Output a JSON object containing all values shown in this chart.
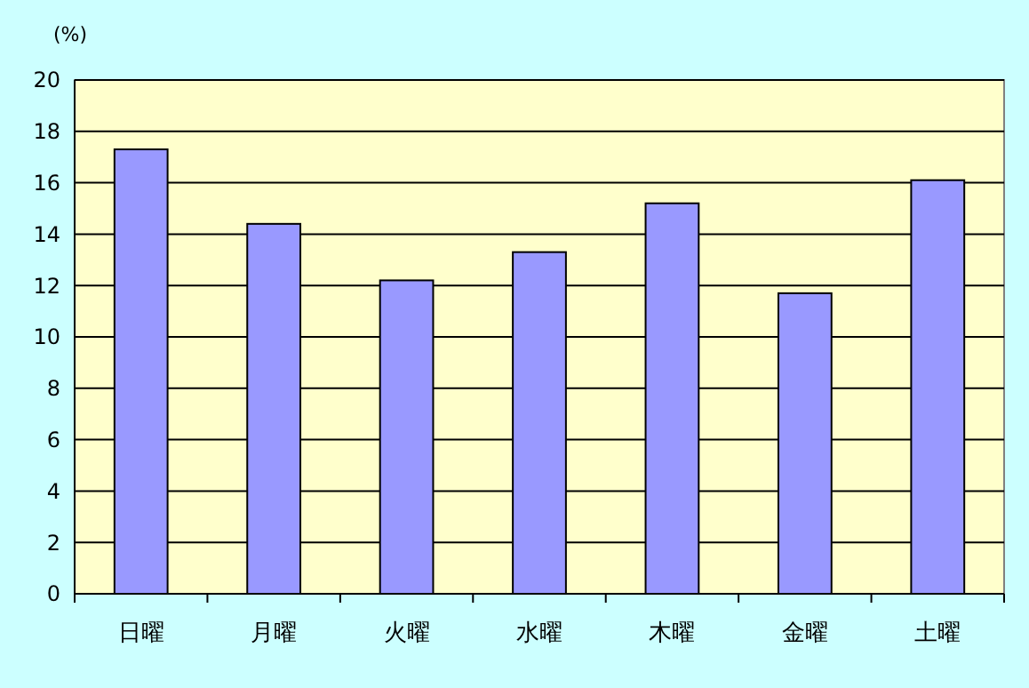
{
  "chart_data": {
    "type": "bar",
    "ylabel": "(%)",
    "categories": [
      "日曜",
      "月曜",
      "火曜",
      "水曜",
      "木曜",
      "金曜",
      "土曜"
    ],
    "values": [
      17.3,
      14.4,
      12.2,
      13.3,
      15.2,
      11.7,
      16.1
    ],
    "color": "#9999ff",
    "ylim": [
      0,
      20
    ],
    "yticks": [
      0,
      2,
      4,
      6,
      8,
      10,
      12,
      14,
      16,
      18,
      20
    ],
    "grid": "y"
  }
}
